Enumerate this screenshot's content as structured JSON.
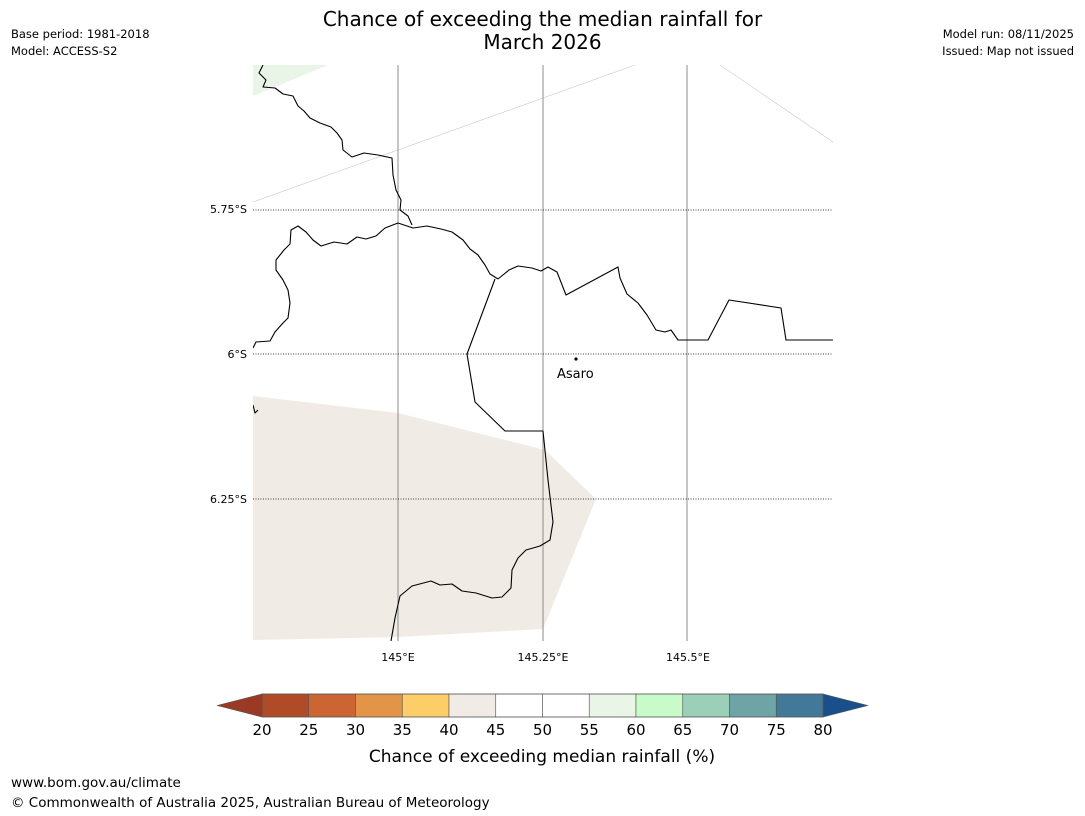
{
  "header": {
    "title_line1": "Chance of exceeding the median rainfall for",
    "title_line2": "March 2026",
    "base_period": "Base period: 1981-2018",
    "model": "Model: ACCESS-S2",
    "model_run": "Model run: 08/11/2025",
    "issued": "Issued: Map not issued"
  },
  "map": {
    "latitude_labels": [
      "5.75°S",
      "6°S",
      "6.25°S"
    ],
    "longitude_labels": [
      "145°E",
      "145.25°E",
      "145.5°E"
    ],
    "place": {
      "name": "Asaro"
    },
    "shaded_region_categories": [
      "40-45",
      "55-60"
    ]
  },
  "colorbar": {
    "label": "Chance of exceeding median rainfall (%)",
    "ticks": [
      "20",
      "25",
      "30",
      "35",
      "40",
      "45",
      "50",
      "55",
      "60",
      "65",
      "70",
      "75",
      "80"
    ],
    "under_color": "#9b3a24",
    "over_color": "#1a4f8c",
    "bins": [
      {
        "range": "20-25",
        "color": "#b14a26"
      },
      {
        "range": "25-30",
        "color": "#cd6434"
      },
      {
        "range": "30-35",
        "color": "#e39447"
      },
      {
        "range": "35-40",
        "color": "#fdcd68"
      },
      {
        "range": "40-45",
        "color": "#f1ebe6"
      },
      {
        "range": "45-50",
        "color": "#ffffff"
      },
      {
        "range": "50-55",
        "color": "#ffffff"
      },
      {
        "range": "55-60",
        "color": "#e9f5e7"
      },
      {
        "range": "60-65",
        "color": "#c8fbc8"
      },
      {
        "range": "65-70",
        "color": "#9ccfb7"
      },
      {
        "range": "70-75",
        "color": "#6fa4a6"
      },
      {
        "range": "75-80",
        "color": "#427999"
      }
    ]
  },
  "footer": {
    "url": "www.bom.gov.au/climate",
    "copyright": "© Commonwealth of Australia 2025, Australian Bureau of Meteorology"
  }
}
